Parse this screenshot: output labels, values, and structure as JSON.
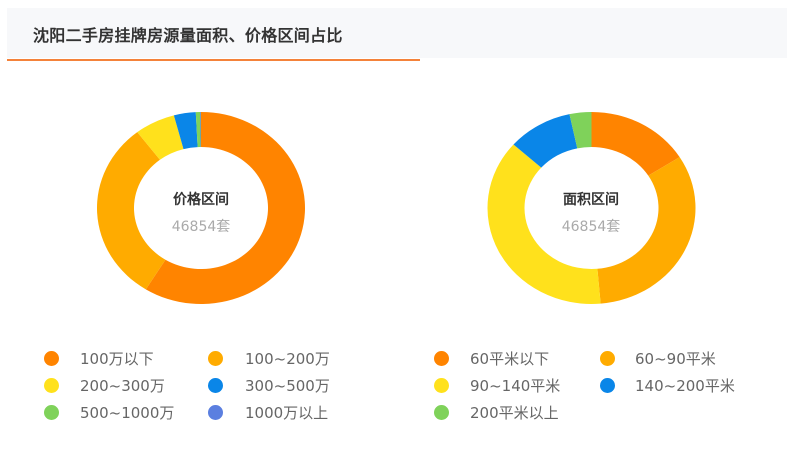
{
  "header": {
    "title": "沈阳二手房挂牌房源量面积、价格区间占比",
    "accent_color": "#f4823a"
  },
  "chart_data": [
    {
      "type": "pie",
      "variant": "donut",
      "title": "价格区间",
      "center_label": "价格区间",
      "center_value": "46854套",
      "total": 46854,
      "categories": [
        "100万以下",
        "100~200万",
        "200~300万",
        "300~500万",
        "500~1000万",
        "1000万以上"
      ],
      "values_percent": [
        58.9,
        30.6,
        6.3,
        3.4,
        0.7,
        0.1
      ],
      "colors": [
        "#ff8400",
        "#ffab00",
        "#ffe11c",
        "#0a86e8",
        "#7fd25a",
        "#5b7fe0"
      ],
      "legend_position": "bottom"
    },
    {
      "type": "pie",
      "variant": "donut",
      "title": "面积区间",
      "center_label": "面积区间",
      "center_value": "46854套",
      "total": 46854,
      "categories": [
        "60平米以下",
        "60~90平米",
        "90~140平米",
        "140~200平米",
        "200平米以上"
      ],
      "values_percent": [
        16.1,
        32.5,
        37.9,
        10.1,
        3.4
      ],
      "colors": [
        "#ff8400",
        "#ffab00",
        "#ffe11c",
        "#0a86e8",
        "#7fd25a"
      ],
      "legend_position": "bottom"
    }
  ],
  "price_chart": {
    "center_label": "价格区间",
    "center_value": "46854套",
    "legend": [
      {
        "label": "100万以下",
        "color": "#ff8400"
      },
      {
        "label": "100~200万",
        "color": "#ffab00"
      },
      {
        "label": "200~300万",
        "color": "#ffe11c"
      },
      {
        "label": "300~500万",
        "color": "#0a86e8"
      },
      {
        "label": "500~1000万",
        "color": "#7fd25a"
      },
      {
        "label": "1000万以上",
        "color": "#5b7fe0"
      }
    ]
  },
  "area_chart": {
    "center_label": "面积区间",
    "center_value": "46854套",
    "legend": [
      {
        "label": "60平米以下",
        "color": "#ff8400"
      },
      {
        "label": "60~90平米",
        "color": "#ffab00"
      },
      {
        "label": "90~140平米",
        "color": "#ffe11c"
      },
      {
        "label": "140~200平米",
        "color": "#0a86e8"
      },
      {
        "label": "200平米以上",
        "color": "#7fd25a"
      }
    ]
  }
}
